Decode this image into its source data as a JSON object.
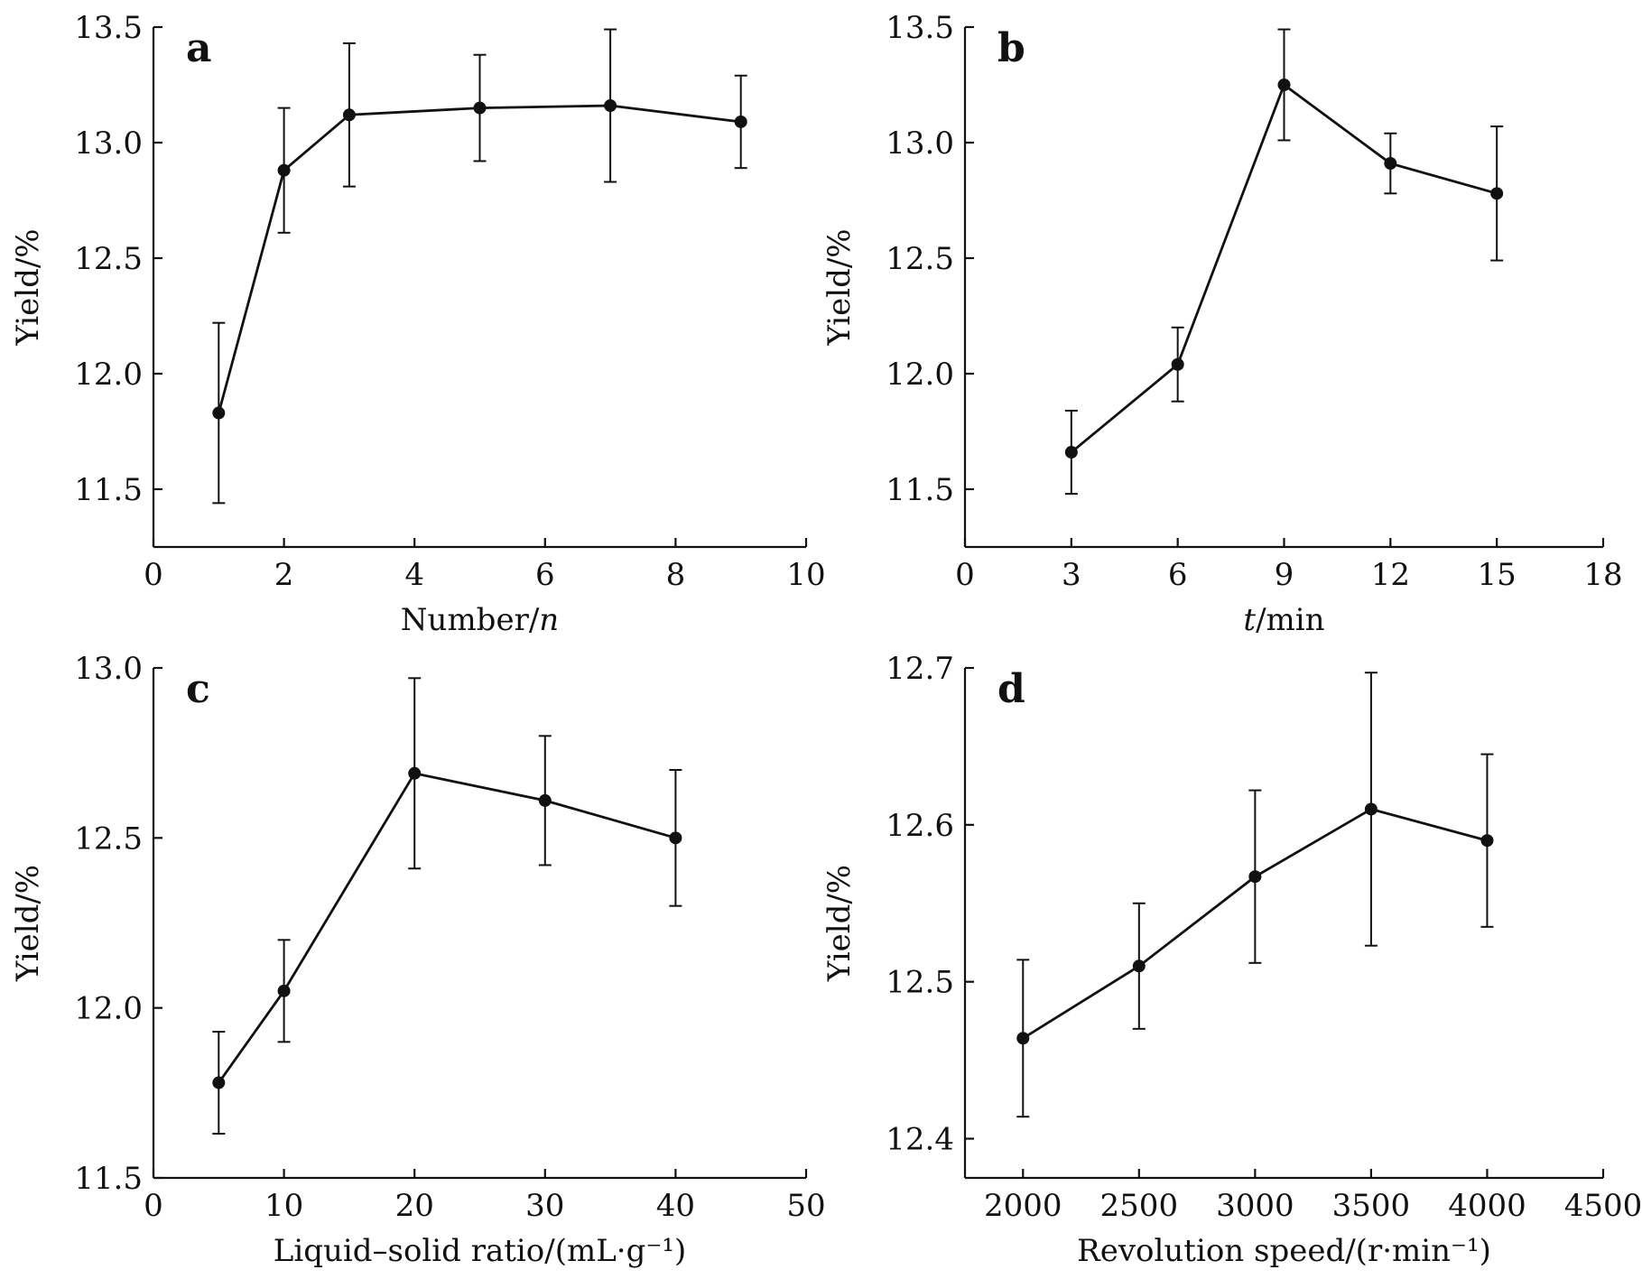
{
  "chart_data": [
    {
      "type": "line",
      "panel_label": "a",
      "xlabel": "Number/n",
      "ylabel": "Yield/%",
      "xlim": [
        0,
        10
      ],
      "ylim": [
        11.25,
        13.5
      ],
      "xticks": [
        "0",
        "2",
        "4",
        "6",
        "8",
        "10"
      ],
      "yticks": [
        "11.5",
        "12.0",
        "12.5",
        "13.0",
        "13.5"
      ],
      "grid": false,
      "series": [
        {
          "x": [
            1,
            2,
            3,
            5,
            7,
            9
          ],
          "y": [
            11.83,
            12.88,
            13.12,
            13.15,
            13.16,
            13.09
          ],
          "error": [
            0.39,
            0.27,
            0.31,
            0.23,
            0.33,
            0.2
          ]
        }
      ]
    },
    {
      "type": "line",
      "panel_label": "b",
      "xlabel": "t/min",
      "ylabel": "Yield/%",
      "xlim": [
        0,
        18
      ],
      "ylim": [
        11.25,
        13.5
      ],
      "xticks": [
        "0",
        "3",
        "6",
        "9",
        "12",
        "15",
        "18"
      ],
      "yticks": [
        "11.5",
        "12.0",
        "12.5",
        "13.0",
        "13.5"
      ],
      "grid": false,
      "series": [
        {
          "x": [
            3,
            6,
            9,
            12,
            15
          ],
          "y": [
            11.66,
            12.04,
            13.25,
            12.91,
            12.78
          ],
          "error": [
            0.18,
            0.16,
            0.24,
            0.13,
            0.29
          ]
        }
      ]
    },
    {
      "type": "line",
      "panel_label": "c",
      "xlabel": "Liquid–solid ratio/(mL·g⁻¹)",
      "ylabel": "Yield/%",
      "xlim": [
        0,
        50
      ],
      "ylim": [
        11.5,
        13.0
      ],
      "xticks": [
        "0",
        "10",
        "20",
        "30",
        "40",
        "50"
      ],
      "yticks": [
        "11.5",
        "12.0",
        "12.5",
        "13.0"
      ],
      "grid": false,
      "series": [
        {
          "x": [
            5,
            10,
            20,
            30,
            40
          ],
          "y": [
            11.78,
            12.05,
            12.69,
            12.61,
            12.5
          ],
          "error": [
            0.15,
            0.15,
            0.28,
            0.19,
            0.2
          ]
        }
      ]
    },
    {
      "type": "line",
      "panel_label": "d",
      "xlabel": "Revolution speed/(r·min⁻¹)",
      "ylabel": "Yield/%",
      "xlim": [
        1750,
        4500
      ],
      "ylim": [
        12.375,
        12.7
      ],
      "xticks": [
        "2000",
        "2500",
        "3000",
        "3500",
        "4000",
        "4500"
      ],
      "yticks": [
        "12.4",
        "12.5",
        "12.6",
        "12.7"
      ],
      "grid": false,
      "series": [
        {
          "x": [
            2000,
            2500,
            3000,
            3500,
            4000
          ],
          "y": [
            12.464,
            12.51,
            12.567,
            12.61,
            12.59
          ],
          "error": [
            0.05,
            0.04,
            0.055,
            0.087,
            0.055
          ]
        }
      ]
    }
  ]
}
